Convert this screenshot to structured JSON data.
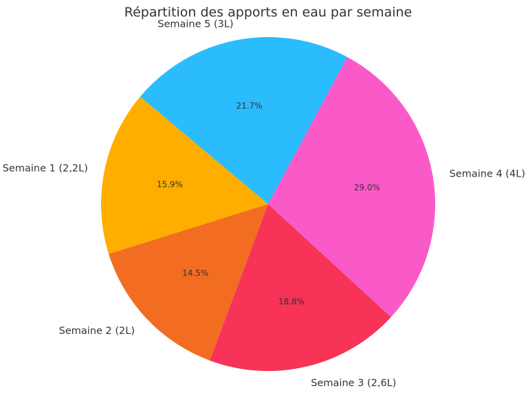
{
  "chart_data": {
    "type": "pie",
    "title": "Répartition des apports en eau par semaine",
    "categories": [
      "Semaine 1 (2,2L)",
      "Semaine 2 (2L)",
      "Semaine 3 (2,6L)",
      "Semaine 4 (4L)",
      "Semaine 5 (3L)"
    ],
    "values": [
      2.2,
      2.0,
      2.6,
      4.0,
      3.0
    ],
    "percent_labels": [
      "15.9%",
      "14.5%",
      "18.8%",
      "29.0%",
      "21.7%"
    ],
    "colors": [
      "#FFAE00",
      "#F26D21",
      "#F73357",
      "#F95AC8",
      "#2BBCFD"
    ],
    "start_angle_deg": 140,
    "direction": "counterclockwise"
  }
}
